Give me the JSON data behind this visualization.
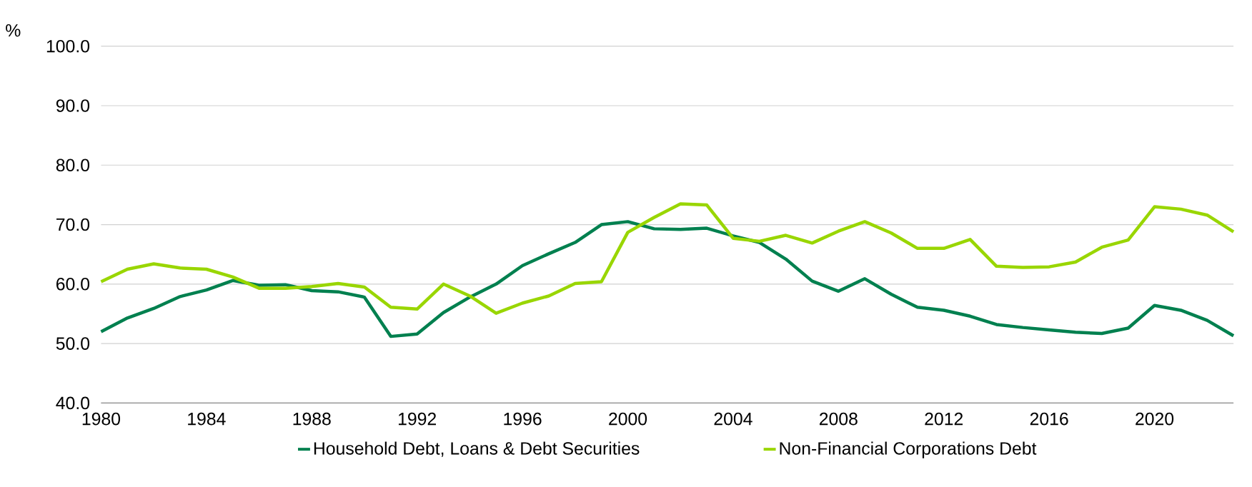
{
  "chart_data": {
    "type": "line",
    "ylabel": "%",
    "x": [
      1980,
      1981,
      1982,
      1983,
      1984,
      1985,
      1986,
      1987,
      1988,
      1989,
      1990,
      1991,
      1992,
      1993,
      1994,
      1995,
      1996,
      1997,
      1998,
      1999,
      2000,
      2001,
      2002,
      2003,
      2004,
      2005,
      2006,
      2007,
      2008,
      2009,
      2010,
      2011,
      2012,
      2013,
      2014,
      2015,
      2016,
      2017,
      2018,
      2019,
      2020,
      2021,
      2022,
      2023
    ],
    "series": [
      {
        "name": "Household Debt, Loans & Debt Securities",
        "color": "#00804f",
        "values": [
          52.0,
          54.3,
          55.9,
          57.9,
          59.0,
          60.6,
          59.8,
          59.9,
          58.9,
          58.7,
          57.8,
          51.2,
          51.6,
          55.2,
          57.8,
          60.0,
          63.1,
          65.1,
          67.0,
          70.0,
          70.5,
          69.3,
          69.2,
          69.4,
          68.1,
          67.0,
          64.2,
          60.5,
          58.8,
          60.9,
          58.3,
          56.1,
          55.6,
          54.6,
          53.2,
          52.7,
          52.3,
          51.9,
          51.7,
          52.6,
          56.4,
          55.6,
          53.9,
          51.3
        ]
      },
      {
        "name": "Non-Financial Corporations Debt",
        "color": "#99d600",
        "values": [
          60.4,
          62.5,
          63.4,
          62.7,
          62.5,
          61.2,
          59.3,
          59.3,
          59.6,
          60.1,
          59.5,
          56.1,
          55.8,
          60.0,
          58.0,
          55.1,
          56.8,
          58.0,
          60.1,
          60.4,
          68.7,
          71.2,
          73.5,
          73.3,
          67.7,
          67.2,
          68.2,
          66.9,
          68.9,
          70.5,
          68.6,
          66.0,
          66.0,
          67.5,
          63.0,
          62.8,
          62.9,
          63.7,
          66.2,
          67.4,
          73.0,
          72.6,
          71.6,
          68.8
        ]
      }
    ],
    "xlim": [
      1980,
      2023
    ],
    "xticks": [
      1980,
      1984,
      1988,
      1992,
      1996,
      2000,
      2004,
      2008,
      2012,
      2016,
      2020
    ],
    "ylim": [
      40,
      100
    ],
    "yticks": [
      {
        "value": 40,
        "label": "40.0"
      },
      {
        "value": 50,
        "label": "50.0"
      },
      {
        "value": 60,
        "label": "60.0"
      },
      {
        "value": 70,
        "label": "70.0"
      },
      {
        "value": 80,
        "label": "80.0"
      },
      {
        "value": 90,
        "label": "90.0"
      },
      {
        "value": 100,
        "label": "100.0"
      }
    ],
    "grid": "y",
    "legend": "bottom",
    "marker": "none",
    "line_style": "solid"
  }
}
